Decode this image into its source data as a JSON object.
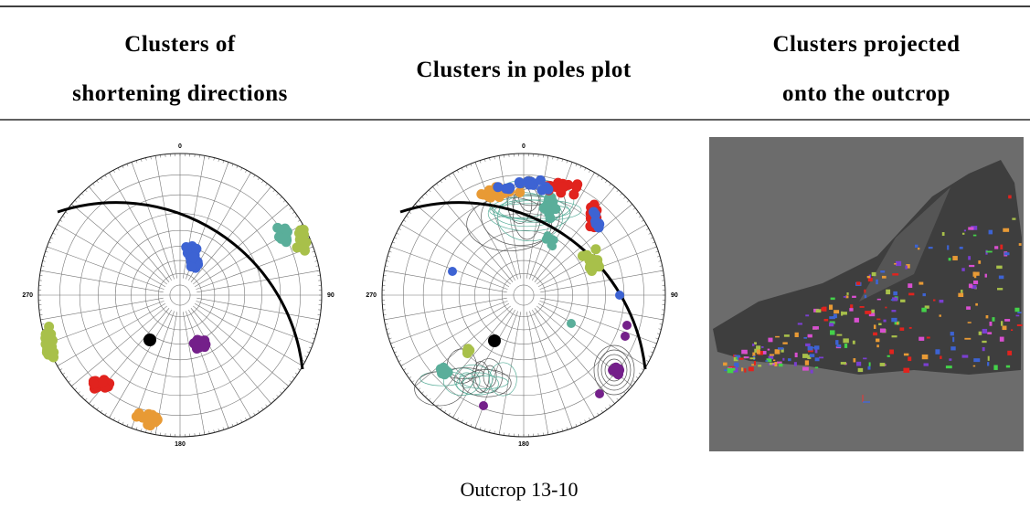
{
  "header": {
    "columns": [
      {
        "lines": [
          "Clusters of",
          "shortening directions"
        ]
      },
      {
        "lines": [
          "Clusters in poles plot"
        ]
      },
      {
        "lines": [
          "Clusters projected",
          "onto the outcrop"
        ]
      }
    ]
  },
  "plots": [
    {
      "labels": {
        "north": "0",
        "east": "90",
        "south": "180",
        "west": "270"
      }
    },
    {
      "labels": {
        "north": "0",
        "east": "90",
        "south": "180",
        "west": "270"
      }
    }
  ],
  "caption": "Outcrop 13-10"
}
